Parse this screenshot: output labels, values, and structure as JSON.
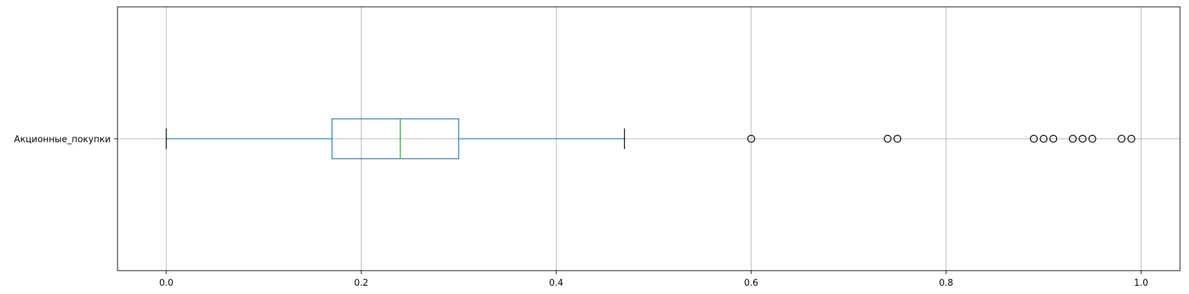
{
  "chart_data": {
    "type": "box",
    "orientation": "horizontal",
    "title": "",
    "xlabel": "",
    "ylabel": "",
    "grid": true,
    "xlim": [
      -0.05,
      1.04
    ],
    "x_ticks": [
      0.0,
      0.2,
      0.4,
      0.6,
      0.8,
      1.0
    ],
    "x_tick_labels": [
      "0.0",
      "0.2",
      "0.4",
      "0.6",
      "0.8",
      "1.0"
    ],
    "categories": [
      "Акционные_покупки"
    ],
    "boxes": [
      {
        "category": "Акционные_покупки",
        "whisker_low": 0.0,
        "q1": 0.17,
        "median": 0.24,
        "q3": 0.3,
        "whisker_high": 0.47,
        "outliers": [
          0.6,
          0.74,
          0.75,
          0.89,
          0.9,
          0.91,
          0.93,
          0.94,
          0.95,
          0.98,
          0.99
        ]
      }
    ],
    "colors": {
      "box": "#1f77b4",
      "median": "#2ca02c",
      "whisker_cap": "#000000",
      "grid": "#b0b0b0",
      "outlier_edge": "#000000"
    }
  }
}
